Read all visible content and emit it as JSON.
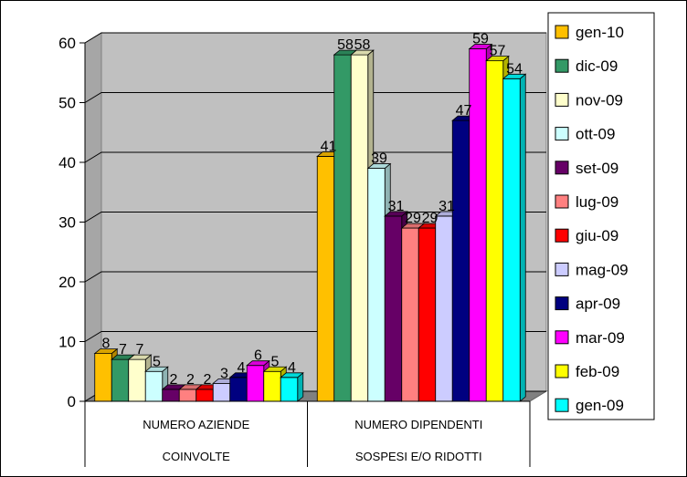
{
  "chart_data": {
    "type": "bar",
    "title": "",
    "xlabel": "",
    "ylabel": "",
    "ylim": [
      0,
      60
    ],
    "yticks": [
      0,
      10,
      20,
      30,
      40,
      50,
      60
    ],
    "grid": true,
    "legend_position": "right",
    "categories": [
      [
        "NUMERO AZIENDE",
        "COINVOLTE"
      ],
      [
        "NUMERO DIPENDENTI",
        "SOSPESI E/O RIDOTTI"
      ]
    ],
    "series": [
      {
        "name": "gen-10",
        "color": "#FFC000",
        "values": [
          8,
          41
        ],
        "labels": [
          "8",
          "41"
        ]
      },
      {
        "name": "dic-09",
        "color": "#339966",
        "values": [
          7,
          58
        ],
        "labels": [
          "7",
          "58"
        ]
      },
      {
        "name": "nov-09",
        "color": "#FFFFCC",
        "values": [
          7,
          58
        ],
        "labels": [
          "7",
          "58"
        ]
      },
      {
        "name": "ott-09",
        "color": "#CCFFFF",
        "values": [
          5,
          39
        ],
        "labels": [
          "5",
          "39"
        ]
      },
      {
        "name": "set-09",
        "color": "#660066",
        "values": [
          2,
          31
        ],
        "labels": [
          "2",
          "31"
        ]
      },
      {
        "name": "lug-09",
        "color": "#FF8080",
        "values": [
          2,
          29
        ],
        "labels": [
          "2",
          "29"
        ]
      },
      {
        "name": "giu-09",
        "color": "#FF0000",
        "values": [
          2,
          29
        ],
        "labels": [
          "2",
          "29"
        ]
      },
      {
        "name": "mag-09",
        "color": "#CCCCFF",
        "values": [
          3,
          31
        ],
        "labels": [
          "3",
          "31"
        ]
      },
      {
        "name": "apr-09",
        "color": "#000080",
        "values": [
          4,
          47
        ],
        "labels": [
          "4",
          "47"
        ]
      },
      {
        "name": "mar-09",
        "color": "#FF00FF",
        "values": [
          6,
          59
        ],
        "labels": [
          "6",
          "59"
        ]
      },
      {
        "name": "feb-09",
        "color": "#FFFF00",
        "values": [
          5,
          57
        ],
        "labels": [
          "5",
          "57"
        ]
      },
      {
        "name": "gen-09",
        "color": "#00FFFF",
        "values": [
          4,
          54
        ],
        "labels": [
          "4",
          "54"
        ]
      }
    ]
  }
}
